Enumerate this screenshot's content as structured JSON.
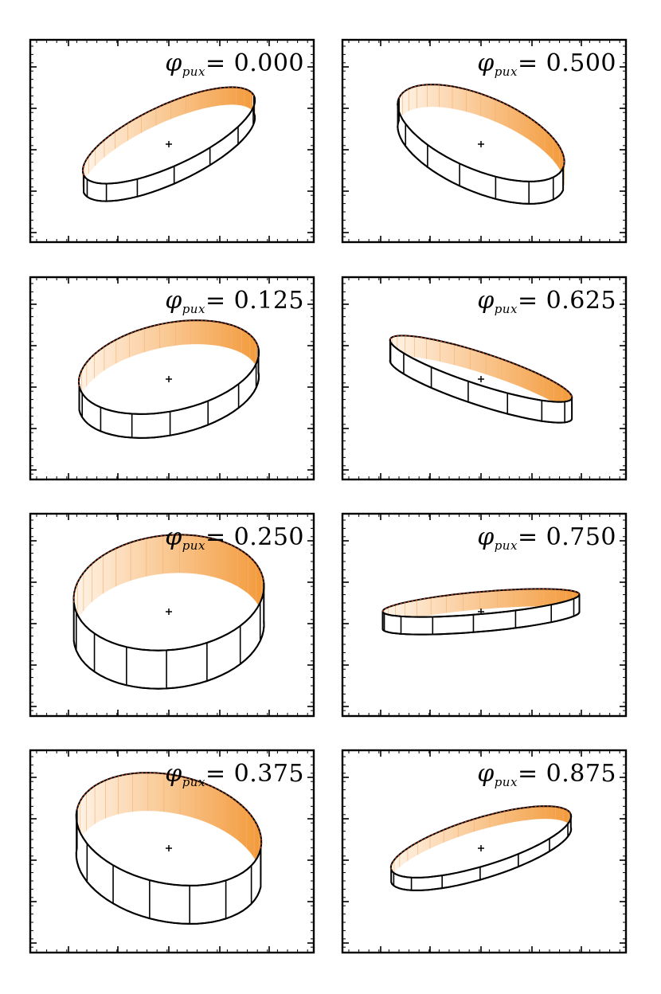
{
  "panels": [
    {
      "id": "p0000",
      "phase_label": "= 0.000",
      "phase": 0.0
    },
    {
      "id": "p0500",
      "phase_label": "= 0.500",
      "phase": 0.5
    },
    {
      "id": "p0125",
      "phase_label": "= 0.125",
      "phase": 0.125
    },
    {
      "id": "p0625",
      "phase_label": "= 0.625",
      "phase": 0.625
    },
    {
      "id": "p0250",
      "phase_label": "= 0.250",
      "phase": 0.25
    },
    {
      "id": "p0750",
      "phase_label": "= 0.750",
      "phase": 0.75
    },
    {
      "id": "p0375",
      "phase_label": "= 0.375",
      "phase": 0.375
    },
    {
      "id": "p0875",
      "phase_label": "= 0.875",
      "phase": 0.875
    }
  ],
  "symbol": {
    "phi": "φ",
    "subscript": "pux"
  },
  "colors": {
    "shade_light": "#fff4e8",
    "shade_dark": "#f39a3a",
    "edge": "#c43a10"
  }
}
